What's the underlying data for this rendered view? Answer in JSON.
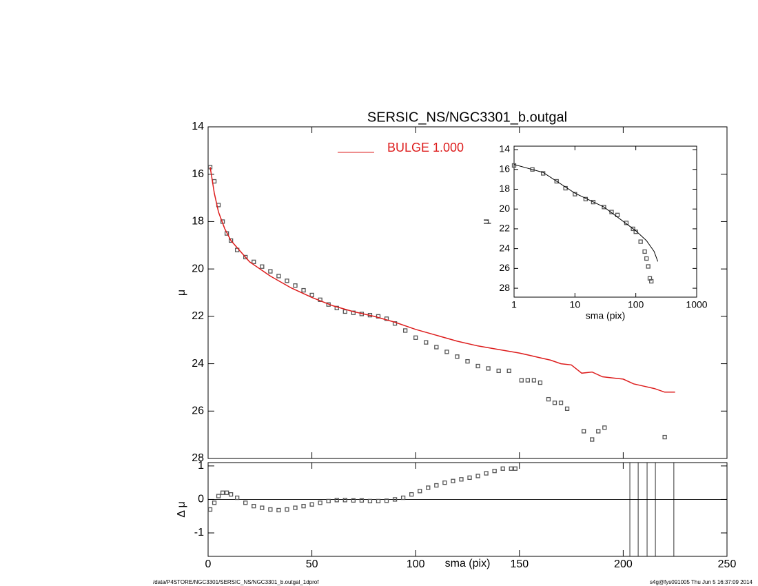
{
  "chart_data": [
    {
      "type": "scatter",
      "title": "SERSIC_NS/NGC3301_b.outgal",
      "ylabel": "μ",
      "xlim": [
        0,
        250
      ],
      "xticks": [
        0,
        50,
        100,
        150,
        200,
        250
      ],
      "ylim": [
        28,
        14
      ],
      "yticks": [
        14,
        16,
        18,
        20,
        22,
        24,
        26,
        28
      ],
      "series": [
        {
          "style": "squares",
          "color": "#555555",
          "x": [
            1,
            3,
            5,
            7,
            9,
            11,
            14,
            18,
            22,
            26,
            30,
            34,
            38,
            42,
            46,
            50,
            54,
            58,
            62,
            66,
            70,
            74,
            78,
            82,
            86,
            90,
            95,
            100,
            105,
            110,
            115,
            120,
            125,
            130,
            135,
            140,
            145,
            151,
            154,
            157,
            160,
            164,
            167,
            170,
            173,
            181,
            185,
            188,
            191,
            220
          ],
          "values": [
            15.7,
            16.3,
            17.3,
            18.0,
            18.5,
            18.8,
            19.2,
            19.5,
            19.7,
            19.9,
            20.1,
            20.3,
            20.5,
            20.7,
            20.9,
            21.1,
            21.3,
            21.5,
            21.65,
            21.8,
            21.85,
            21.9,
            21.95,
            22.0,
            22.1,
            22.3,
            22.6,
            22.9,
            23.1,
            23.3,
            23.5,
            23.7,
            23.9,
            24.1,
            24.2,
            24.3,
            24.3,
            24.7,
            24.7,
            24.7,
            24.8,
            25.5,
            25.65,
            25.65,
            25.9,
            26.85,
            27.2,
            26.85,
            26.7,
            27.1
          ]
        },
        {
          "style": "line",
          "name": "BULGE  1.000",
          "color": "#dd1c1c",
          "x": [
            1,
            3,
            5,
            8,
            11,
            15,
            20,
            30,
            40,
            50,
            60,
            70,
            80,
            90,
            100,
            110,
            120,
            130,
            140,
            150,
            155,
            160,
            165,
            170,
            175,
            180,
            185,
            190,
            195,
            200,
            205,
            210,
            215,
            220,
            225
          ],
          "values": [
            15.7,
            16.8,
            17.6,
            18.3,
            18.8,
            19.2,
            19.7,
            20.3,
            20.8,
            21.2,
            21.55,
            21.8,
            22.0,
            22.25,
            22.55,
            22.8,
            23.05,
            23.25,
            23.4,
            23.55,
            23.65,
            23.75,
            23.85,
            24.0,
            24.05,
            24.4,
            24.35,
            24.55,
            24.6,
            24.65,
            24.85,
            24.95,
            25.05,
            25.2,
            25.2
          ]
        }
      ]
    },
    {
      "type": "scatter",
      "xlabel": "sma (pix)",
      "ylabel": "Δ μ",
      "xlim": [
        0,
        250
      ],
      "xticks": [
        0,
        50,
        100,
        150,
        200,
        250
      ],
      "ylim": [
        -1.7,
        1.1
      ],
      "yticks": [
        -1,
        0,
        1
      ],
      "vlines": [
        203.2,
        207.2,
        211.5,
        215.5,
        224.4
      ],
      "series": [
        {
          "style": "squares",
          "color": "#555555",
          "x": [
            1,
            3,
            5,
            7,
            9,
            11,
            14,
            18,
            22,
            26,
            30,
            34,
            38,
            42,
            46,
            50,
            54,
            58,
            62,
            66,
            70,
            74,
            78,
            82,
            86,
            90,
            94,
            98,
            102,
            106,
            110,
            114,
            118,
            122,
            126,
            130,
            134,
            138,
            142,
            146,
            148
          ],
          "values": [
            -0.3,
            -0.1,
            0.1,
            0.2,
            0.2,
            0.15,
            0.05,
            -0.1,
            -0.2,
            -0.25,
            -0.3,
            -0.32,
            -0.3,
            -0.25,
            -0.2,
            -0.15,
            -0.1,
            -0.05,
            -0.02,
            -0.02,
            -0.03,
            -0.03,
            -0.05,
            -0.05,
            -0.04,
            0.0,
            0.05,
            0.15,
            0.25,
            0.35,
            0.42,
            0.5,
            0.55,
            0.6,
            0.65,
            0.7,
            0.78,
            0.85,
            0.92,
            0.92,
            0.92
          ]
        }
      ]
    },
    {
      "type": "scatter",
      "xlabel": "sma (pix)",
      "ylabel": "μ",
      "xlog": true,
      "xlim": [
        1,
        1000
      ],
      "xticks": [
        1,
        10,
        100,
        1000
      ],
      "ylim": [
        28.9,
        13.65
      ],
      "yticks": [
        14,
        16,
        18,
        20,
        22,
        24,
        26,
        28
      ],
      "series": [
        {
          "style": "squares",
          "color": "#555555",
          "x": [
            1,
            2,
            3,
            5,
            7,
            10,
            15,
            20,
            30,
            40,
            50,
            70,
            90,
            100,
            120,
            140,
            150,
            160,
            170,
            180
          ],
          "values": [
            15.6,
            16.0,
            16.4,
            17.2,
            17.9,
            18.5,
            19.0,
            19.3,
            19.8,
            20.3,
            20.6,
            21.4,
            22.0,
            22.3,
            23.3,
            24.3,
            25.0,
            25.8,
            27.0,
            27.3
          ]
        },
        {
          "style": "line",
          "color": "#000000",
          "x": [
            1,
            3,
            10,
            30,
            100,
            150,
            200,
            230
          ],
          "values": [
            15.5,
            16.3,
            18.4,
            19.8,
            22.2,
            23.2,
            24.3,
            25.3
          ]
        }
      ]
    }
  ],
  "footer": {
    "left": "/data/P4STORE/NGC3301/SERSIC_NS/NGC3301_b.outgal_1dprof",
    "right": "s4g@fys091005  Thu Jun  5 16:37:09 2014"
  }
}
